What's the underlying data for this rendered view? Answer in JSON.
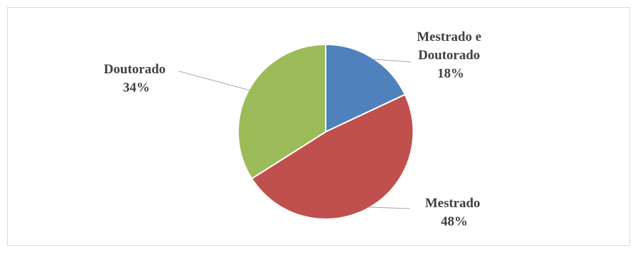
{
  "chart_data": {
    "type": "pie",
    "title": "",
    "slices": [
      {
        "label_lines": [
          "Mestrado e",
          "Doutorado"
        ],
        "percent_label": "18%",
        "value": 18,
        "color": "#4f81bd"
      },
      {
        "label_lines": [
          "Mestrado"
        ],
        "percent_label": "48%",
        "value": 48,
        "color": "#c0504d"
      },
      {
        "label_lines": [
          "Doutorado"
        ],
        "percent_label": "34%",
        "value": 34,
        "color": "#9bbb59"
      }
    ],
    "start_angle": "12 o'clock",
    "direction": "clockwise",
    "legend": "none"
  }
}
